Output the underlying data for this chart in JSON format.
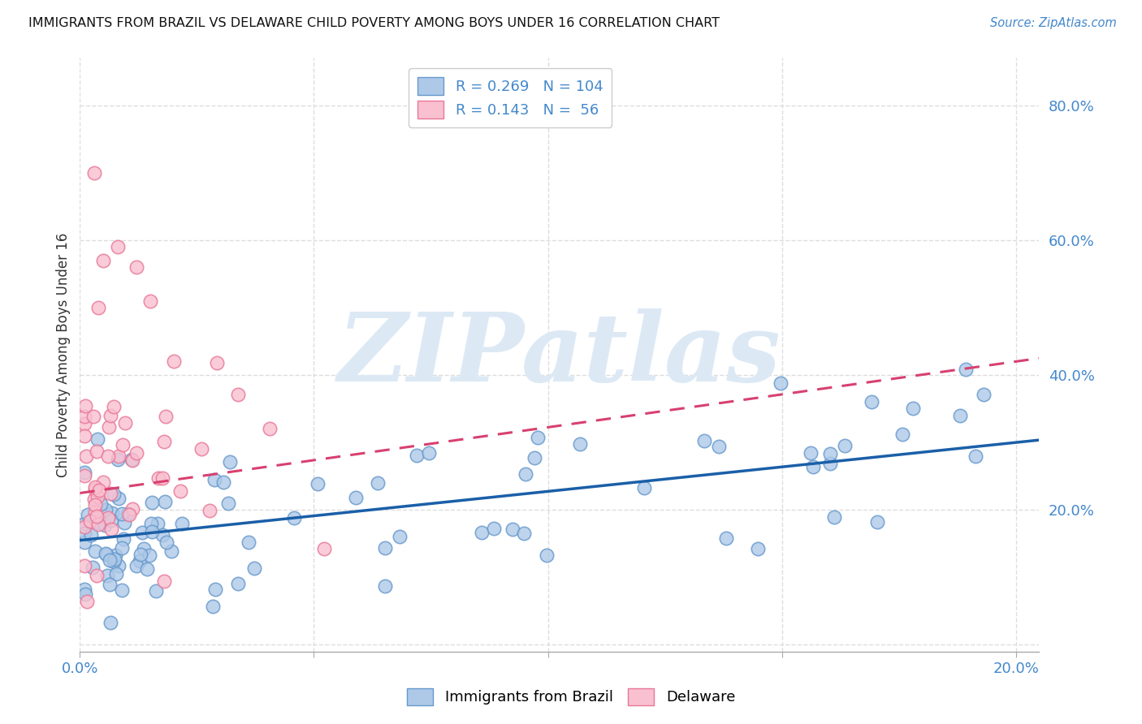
{
  "title": "IMMIGRANTS FROM BRAZIL VS DELAWARE CHILD POVERTY AMONG BOYS UNDER 16 CORRELATION CHART",
  "source": "Source: ZipAtlas.com",
  "ylabel": "Child Poverty Among Boys Under 16",
  "ytick_vals": [
    0.0,
    0.2,
    0.4,
    0.6,
    0.8
  ],
  "ytick_labels": [
    "",
    "20.0%",
    "40.0%",
    "60.0%",
    "80.0%"
  ],
  "xtick_vals": [
    0.0,
    0.05,
    0.1,
    0.15,
    0.2
  ],
  "xtick_labels": [
    "0.0%",
    "",
    "",
    "",
    "20.0%"
  ],
  "xlim": [
    0.0,
    0.205
  ],
  "ylim": [
    -0.01,
    0.87
  ],
  "blue_fill": "#aec9e8",
  "blue_edge": "#6699cc",
  "pink_fill": "#f9c0d0",
  "pink_edge": "#e87898",
  "blue_line_color": "#1a5fa8",
  "pink_line_color": "#d84070",
  "watermark": "ZIPatlas",
  "watermark_color": "#dce9f5",
  "tick_label_color": "#4488cc",
  "legend_box_color": "#cccccc",
  "legend_text_color": "#4488cc",
  "title_color": "#111111",
  "source_color": "#4488cc",
  "ylabel_color": "#333333",
  "grid_color": "#dddddd",
  "legend_brazil_r": "0.269",
  "legend_brazil_n": "104",
  "legend_delaware_r": "0.143",
  "legend_delaware_n": "56",
  "label_brazil": "Immigrants from Brazil",
  "label_delaware": "Delaware"
}
